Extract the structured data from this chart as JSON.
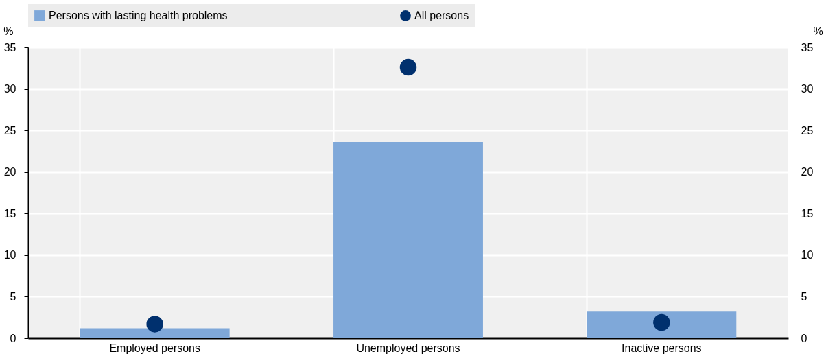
{
  "chart_data": {
    "type": "bar",
    "categories": [
      "Employed persons",
      "Unemployed persons",
      "Inactive persons"
    ],
    "series": [
      {
        "name": "Persons with lasting health problems",
        "color": "#7fa8d9",
        "values": [
          1.2,
          23.6,
          3.2
        ]
      },
      {
        "name": "All persons",
        "type": "scatter",
        "color": "#00306e",
        "values": [
          1.7,
          32.6,
          1.9
        ]
      }
    ],
    "ylabel": "%",
    "y2label": "%",
    "ylim": [
      0,
      35
    ],
    "yticks": [
      0,
      5,
      10,
      15,
      20,
      25,
      30,
      35
    ],
    "y2lim": [
      0,
      35
    ],
    "y2ticks": [
      0,
      5,
      10,
      15,
      20,
      25,
      30,
      35
    ],
    "grid": true,
    "legend": "top",
    "marker": "circle"
  }
}
